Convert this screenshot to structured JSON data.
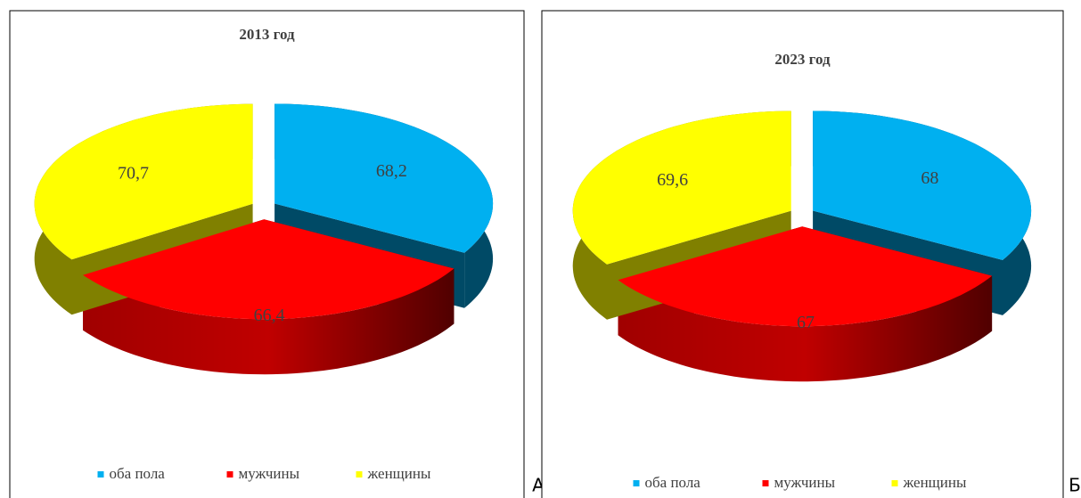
{
  "chart_data": [
    {
      "type": "pie3d",
      "title": "2013 год",
      "panel_label": "А",
      "categories": [
        "оба пола",
        "мужчины",
        "женщины"
      ],
      "values": [
        68.2,
        66.4,
        70.7
      ],
      "value_labels": [
        "68,2",
        "66,4",
        "70,7"
      ],
      "colors": [
        "#00b0f0",
        "#ff0000",
        "#ffff00"
      ]
    },
    {
      "type": "pie3d",
      "title": "2023 год",
      "panel_label": "Б",
      "categories": [
        "оба пола",
        "мужчины",
        "женщины"
      ],
      "values": [
        68,
        67,
        69.6
      ],
      "value_labels": [
        "68",
        "67",
        "69,6"
      ],
      "colors": [
        "#00b0f0",
        "#ff0000",
        "#ffff00"
      ]
    }
  ]
}
